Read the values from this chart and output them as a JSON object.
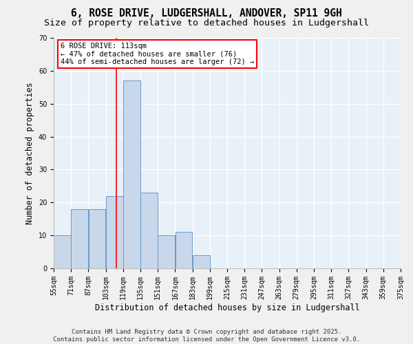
{
  "title_line1": "6, ROSE DRIVE, LUDGERSHALL, ANDOVER, SP11 9GH",
  "title_line2": "Size of property relative to detached houses in Ludgershall",
  "xlabel": "Distribution of detached houses by size in Ludgershall",
  "ylabel": "Number of detached properties",
  "bin_edges": [
    55,
    71,
    87,
    103,
    119,
    135,
    151,
    167,
    183,
    199,
    215,
    231,
    247,
    263,
    279,
    295,
    311,
    327,
    343,
    359,
    375
  ],
  "bar_heights": [
    10,
    18,
    18,
    22,
    57,
    23,
    10,
    11,
    4,
    0,
    0,
    0,
    0,
    0,
    0,
    0,
    0,
    0,
    0,
    0
  ],
  "bar_color": "#c8d8ea",
  "bar_edge_color": "#6699cc",
  "red_line_x": 113,
  "annotation_text": "6 ROSE DRIVE: 113sqm\n← 47% of detached houses are smaller (76)\n44% of semi-detached houses are larger (72) →",
  "ylim": [
    0,
    70
  ],
  "yticks": [
    0,
    10,
    20,
    30,
    40,
    50,
    60,
    70
  ],
  "background_color": "#e8f0f8",
  "grid_color": "#ffffff",
  "fig_bg_color": "#f0f0f0",
  "footer_line1": "Contains HM Land Registry data © Crown copyright and database right 2025.",
  "footer_line2": "Contains public sector information licensed under the Open Government Licence v3.0.",
  "title_fontsize": 10.5,
  "subtitle_fontsize": 9.5,
  "axis_label_fontsize": 8.5,
  "tick_fontsize": 7,
  "annotation_fontsize": 7.5,
  "footer_fontsize": 6.5
}
